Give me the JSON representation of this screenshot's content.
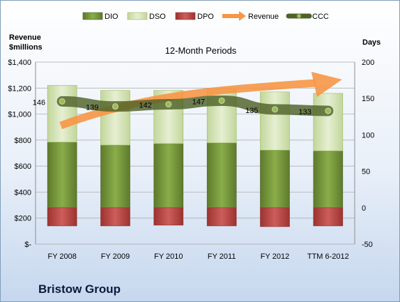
{
  "company": "Bristow Group",
  "chart_data": {
    "type": "bar",
    "title": "12-Month Periods",
    "left_axis_label": [
      "Revenue",
      "$millions"
    ],
    "right_axis_label": "Days",
    "categories": [
      "FY 2008",
      "FY 2009",
      "FY 2010",
      "FY 2011",
      "FY 2012",
      "TTM 6-2012"
    ],
    "left_ticks": [
      "$-",
      "$200",
      "$400",
      "$600",
      "$800",
      "$1,000",
      "$1,200",
      "$1,400"
    ],
    "right_ticks": [
      "-50",
      "0",
      "50",
      "100",
      "150",
      "200"
    ],
    "ylim_left": [
      0,
      1400
    ],
    "ylim_right": [
      -50,
      200
    ],
    "legend": [
      "DIO",
      "DSO",
      "DPO",
      "Revenue",
      "CCC"
    ],
    "legend_position": "top",
    "series": [
      {
        "name": "DIO",
        "axis": "right",
        "values": [
          90,
          86,
          88,
          89,
          79,
          78
        ]
      },
      {
        "name": "DSO",
        "axis": "right",
        "values": [
          78,
          75,
          73,
          75,
          80,
          79
        ]
      },
      {
        "name": "DPO",
        "axis": "right",
        "values": [
          -25,
          -25,
          -24,
          -25,
          -26,
          -25
        ]
      },
      {
        "name": "CCC",
        "axis": "right",
        "values": [
          146,
          139,
          142,
          147,
          135,
          133
        ],
        "labels": [
          "146",
          "139",
          "142",
          "147",
          "135",
          "133"
        ]
      }
    ],
    "revenue_trend": {
      "name": "Revenue",
      "direction": "up"
    },
    "colors": {
      "DIO": "#77933c",
      "DSO": "#d7e4bd",
      "DPO": "#c0504d",
      "Revenue": "#f79646",
      "CCC": "#4f6228"
    }
  }
}
